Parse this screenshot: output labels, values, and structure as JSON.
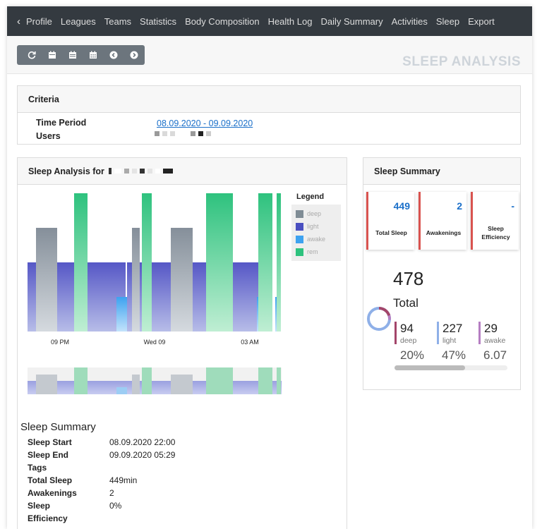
{
  "nav": {
    "items": [
      "Profile",
      "Leagues",
      "Teams",
      "Statistics",
      "Body Composition",
      "Health Log",
      "Daily Summary",
      "Activities",
      "Sleep",
      "Export"
    ]
  },
  "toolbar": {
    "buttons": [
      "refresh-icon",
      "calendar-day-icon",
      "calendar-week-icon",
      "calendar-month-icon",
      "chevron-left-icon",
      "chevron-right-icon"
    ]
  },
  "page": {
    "title": "SLEEP ANALYSIS"
  },
  "criteria": {
    "header": "Criteria",
    "time_period_label": "Time Period",
    "time_period_value": "08.09.2020 - 09.09.2020",
    "users_label": "Users"
  },
  "analysis": {
    "header": "Sleep Analysis for",
    "legend_title": "Legend",
    "legend": [
      {
        "name": "deep",
        "color": "#7f8c95"
      },
      {
        "name": "light",
        "color": "#4a4fc0"
      },
      {
        "name": "awake",
        "color": "#3da2f0"
      },
      {
        "name": "rem",
        "color": "#2ec27e"
      }
    ],
    "x_ticks": [
      "09 PM",
      "Wed 09",
      "03 AM"
    ],
    "summary_title": "Sleep Summary",
    "summary_rows": [
      {
        "label": "Sleep Start",
        "value": "08.09.2020 22:00"
      },
      {
        "label": "Sleep End",
        "value": "09.09.2020 05:29"
      },
      {
        "label": "Tags",
        "value": ""
      },
      {
        "label": "Total Sleep",
        "value": "449min"
      },
      {
        "label": "Awakenings",
        "value": "2"
      },
      {
        "label": "Sleep",
        "value": "0%"
      },
      {
        "label": "Efficiency",
        "value": ""
      }
    ]
  },
  "summary_card": {
    "header": "Sleep Summary",
    "stats": [
      {
        "value": "449",
        "label": "Total Sleep"
      },
      {
        "value": "2",
        "label": "Awakenings"
      },
      {
        "value": "-",
        "label": "Sleep Efficiency"
      }
    ],
    "total": "478",
    "total_label": "Total",
    "segments": [
      {
        "value": "94",
        "name": "deep",
        "pct": "20%",
        "color": "#a3456a"
      },
      {
        "value": "227",
        "name": "light",
        "pct": "47%",
        "color": "#8fb0e8"
      },
      {
        "value": "29",
        "name": "awake",
        "pct": "6.07",
        "color": "#b57ec2"
      }
    ]
  }
}
